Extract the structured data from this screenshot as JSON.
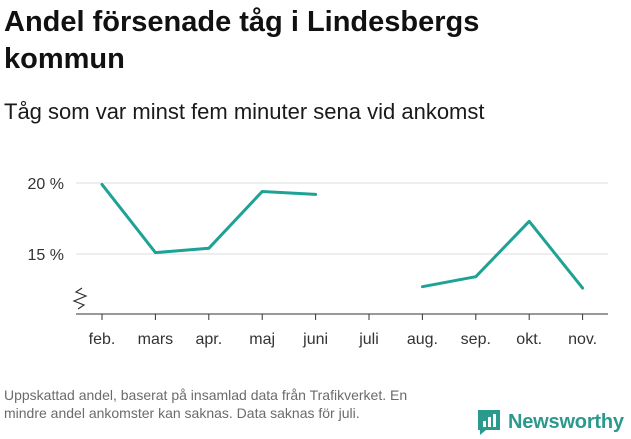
{
  "chart_data": {
    "type": "line",
    "title": "Andel försenade tåg i Lindesbergs kommun",
    "subtitle": "Tåg som var minst fem minuter sena vid ankomst",
    "categories": [
      "feb.",
      "mars",
      "apr.",
      "maj",
      "juni",
      "juli",
      "aug.",
      "sep.",
      "okt.",
      "nov."
    ],
    "series": [
      {
        "values": [
          19.9,
          15.1,
          15.4,
          19.4,
          19.2,
          null,
          12.7,
          13.4,
          17.3,
          12.6
        ]
      }
    ],
    "y_ticks": [
      {
        "value": 20,
        "label": "20 %"
      },
      {
        "value": 15,
        "label": "15 %"
      }
    ],
    "ylim": [
      11.0,
      21.0
    ],
    "y_axis_break": true,
    "grid": true,
    "xlabel": "",
    "ylabel": ""
  },
  "footnote": "Uppskattad andel, baserat på insamlad data från Trafikverket. En mindre andel ankomster kan saknas. Data saknas för juli.",
  "brand": {
    "name": "Newsworthy",
    "icon": "newsworthy-logo-icon"
  },
  "colors": {
    "line": "#1ea296",
    "grid": "#dddddd",
    "axis": "#333333",
    "brand": "#2b9a8e"
  }
}
